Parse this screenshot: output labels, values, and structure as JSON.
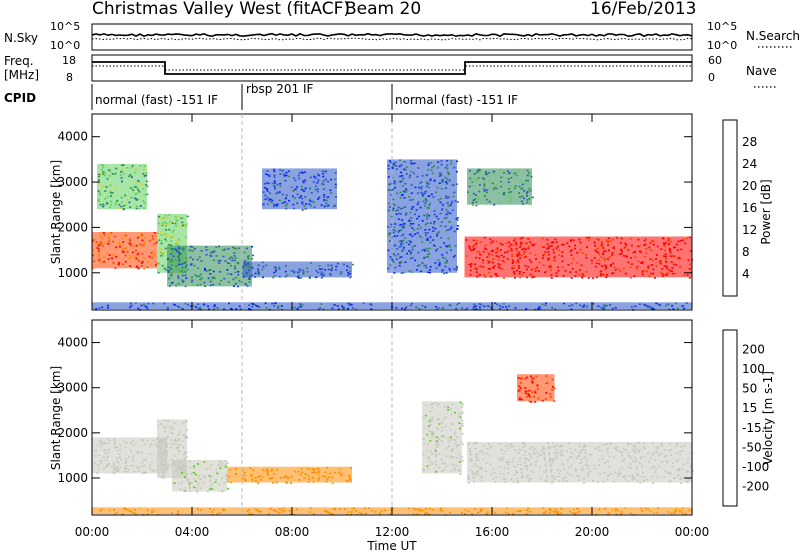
{
  "header": {
    "title": "Christmas Valley West (fitACF)",
    "beam": "Beam 20",
    "date": "16/Feb/2013"
  },
  "strips": {
    "nsky": {
      "left_label": "N.Sky",
      "right_label": "N.Search",
      "left_ticks": [
        "10^5",
        "10^0"
      ],
      "right_ticks": [
        "10^5",
        "10^0"
      ]
    },
    "freq": {
      "left_label_1": "Freq.",
      "left_label_2": "[MHz]",
      "right_label": "Nave",
      "left_ticks": [
        "18",
        "8"
      ],
      "right_ticks": [
        "60",
        "0"
      ]
    },
    "cpid": {
      "label": "CPID",
      "segments": [
        {
          "name": "normal (fast) -151 IF",
          "start_hour": 0,
          "end_hour": 6
        },
        {
          "name": "rbsp 201 IF",
          "start_hour": 6,
          "end_hour": 12
        },
        {
          "name": "normal (fast) -151 IF",
          "start_hour": 12,
          "end_hour": 24
        }
      ]
    }
  },
  "axes": {
    "xlabel": "Time UT",
    "x_ticks": [
      "00:00",
      "04:00",
      "08:00",
      "12:00",
      "16:00",
      "20:00",
      "00:00"
    ],
    "ylabel": "Slant Range [km]",
    "y_ticks": [
      "1000",
      "2000",
      "3000",
      "4000"
    ]
  },
  "colors": {
    "power_scale": [
      "#0a28ff",
      "#2a56c6",
      "#2d8b57",
      "#5fd15f",
      "#f0c800",
      "#ff8800",
      "#ff4400",
      "#ff0000"
    ],
    "velocity_scale": [
      "#ff0000",
      "#ff4400",
      "#ff8c00",
      "#f0a800",
      "#c8c8be",
      "#c8c8be",
      "#5ad20a",
      "#2e8b57",
      "#1e50c8",
      "#1428e6"
    ]
  },
  "chart_data": [
    {
      "type": "heatmap",
      "title": "",
      "xlabel": "",
      "ylabel": "Slant Range [km]",
      "xlim": [
        0,
        24
      ],
      "ylim": [
        180,
        4500
      ],
      "colorbar": {
        "label": "Power [dB]",
        "ticks": [
          "4",
          "8",
          "12",
          "16",
          "20",
          "24",
          "28"
        ],
        "range": [
          0,
          32
        ]
      },
      "regions": [
        {
          "t0": 0.0,
          "t1": 2.6,
          "r0": 1100,
          "r1": 1900,
          "level": 26
        },
        {
          "t0": 0.2,
          "t1": 2.2,
          "r0": 2400,
          "r1": 3400,
          "level": 12
        },
        {
          "t0": 2.6,
          "t1": 3.8,
          "r0": 1000,
          "r1": 2300,
          "level": 14
        },
        {
          "t0": 3.0,
          "t1": 6.4,
          "r0": 700,
          "r1": 1600,
          "level": 8
        },
        {
          "t0": 6.0,
          "t1": 10.4,
          "r0": 900,
          "r1": 1250,
          "level": 7
        },
        {
          "t0": 6.8,
          "t1": 9.8,
          "r0": 2400,
          "r1": 3300,
          "level": 5
        },
        {
          "t0": 11.8,
          "t1": 14.6,
          "r0": 1000,
          "r1": 3500,
          "level": 6
        },
        {
          "t0": 14.9,
          "t1": 24.0,
          "r0": 900,
          "r1": 1800,
          "level": 30
        },
        {
          "t0": 15.0,
          "t1": 17.6,
          "r0": 2500,
          "r1": 3300,
          "level": 10
        },
        {
          "t0": 0.0,
          "t1": 24.0,
          "r0": 200,
          "r1": 350,
          "level": 5
        }
      ]
    },
    {
      "type": "heatmap",
      "title": "",
      "xlabel": "Time UT",
      "ylabel": "Slant Range [km]",
      "xlim": [
        0,
        24
      ],
      "ylim": [
        180,
        4500
      ],
      "colorbar": {
        "label": "Velocity [m s-1]",
        "ticks": [
          "200",
          "100",
          "50",
          "15",
          "-15",
          "-50",
          "-100",
          "-200"
        ],
        "range": [
          -250,
          250
        ]
      },
      "regions": [
        {
          "t0": 0.0,
          "t1": 3.0,
          "r0": 1100,
          "r1": 1900,
          "level": 0
        },
        {
          "t0": 2.6,
          "t1": 3.8,
          "r0": 1000,
          "r1": 2300,
          "level": 0
        },
        {
          "t0": 3.2,
          "t1": 5.4,
          "r0": 700,
          "r1": 1400,
          "level": 40
        },
        {
          "t0": 5.4,
          "t1": 10.4,
          "r0": 900,
          "r1": 1250,
          "level": -60
        },
        {
          "t0": 13.2,
          "t1": 14.8,
          "r0": 1100,
          "r1": 2700,
          "level": 40
        },
        {
          "t0": 15.0,
          "t1": 24.0,
          "r0": 900,
          "r1": 1800,
          "level": 0
        },
        {
          "t0": 17.0,
          "t1": 18.5,
          "r0": 2700,
          "r1": 3300,
          "level": -200
        },
        {
          "t0": 0.0,
          "t1": 24.0,
          "r0": 200,
          "r1": 350,
          "level": -60
        }
      ]
    }
  ]
}
